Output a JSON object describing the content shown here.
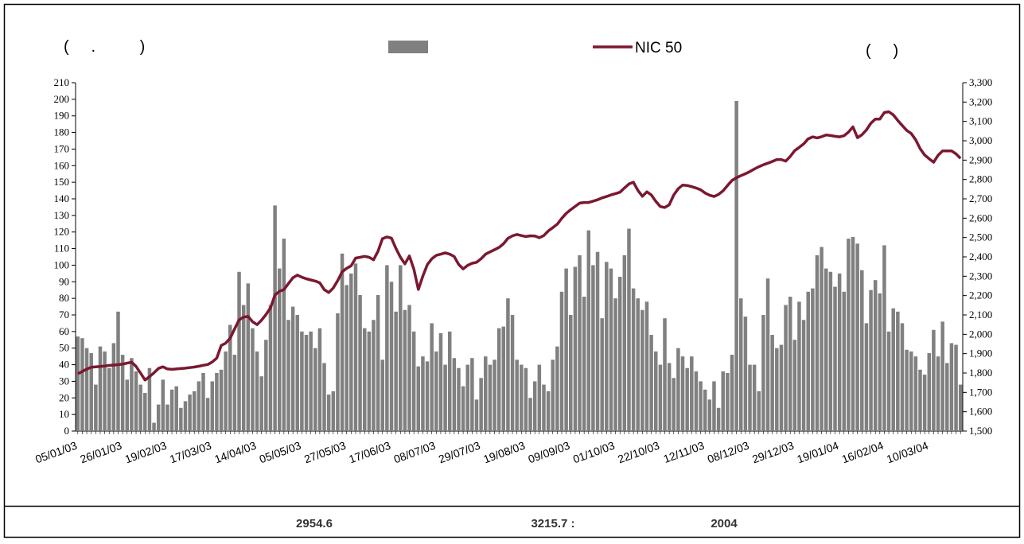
{
  "chart_data": {
    "type": "bar_line",
    "left_axis_label": "(     .          )",
    "right_axis_label": "(     )",
    "footer": [
      "2954.6",
      "3215.7 :",
      "2004"
    ],
    "categories": [
      "05/01/03",
      null,
      null,
      null,
      null,
      null,
      null,
      null,
      null,
      null,
      "26/01/03",
      null,
      null,
      null,
      null,
      null,
      null,
      null,
      null,
      null,
      "19/02/03",
      null,
      null,
      null,
      null,
      null,
      null,
      null,
      null,
      null,
      "17/03/03",
      null,
      null,
      null,
      null,
      null,
      null,
      null,
      null,
      null,
      "14/04/03",
      null,
      null,
      null,
      null,
      null,
      null,
      null,
      null,
      null,
      "05/05/03",
      null,
      null,
      null,
      null,
      null,
      null,
      null,
      null,
      null,
      "27/05/03",
      null,
      null,
      null,
      null,
      null,
      null,
      null,
      null,
      null,
      "17/06/03",
      null,
      null,
      null,
      null,
      null,
      null,
      null,
      null,
      null,
      "08/07/03",
      null,
      null,
      null,
      null,
      null,
      null,
      null,
      null,
      null,
      "29/07/03",
      null,
      null,
      null,
      null,
      null,
      null,
      null,
      null,
      null,
      "19/08/03",
      null,
      null,
      null,
      null,
      null,
      null,
      null,
      null,
      null,
      "09/09/03",
      null,
      null,
      null,
      null,
      null,
      null,
      null,
      null,
      null,
      "01/10/03",
      null,
      null,
      null,
      null,
      null,
      null,
      null,
      null,
      null,
      "22/10/03",
      null,
      null,
      null,
      null,
      null,
      null,
      null,
      null,
      null,
      "12/11/03",
      null,
      null,
      null,
      null,
      null,
      null,
      null,
      null,
      null,
      "08/12/03",
      null,
      null,
      null,
      null,
      null,
      null,
      null,
      null,
      null,
      "29/12/03",
      null,
      null,
      null,
      null,
      null,
      null,
      null,
      null,
      null,
      "19/01/04",
      null,
      null,
      null,
      null,
      null,
      null,
      null,
      null,
      null,
      "16/02/04",
      null,
      null,
      null,
      null,
      null,
      null,
      null,
      null,
      null,
      "10/03/04",
      null,
      null,
      null,
      null,
      null,
      null,
      null
    ],
    "series": [
      {
        "kind": "bar",
        "color": "#808080",
        "values": [
          57,
          56,
          50,
          47,
          28,
          51,
          48,
          38,
          53,
          72,
          46,
          31,
          44,
          36,
          28,
          23,
          38,
          5,
          16,
          31,
          16,
          25,
          27,
          14,
          18,
          22,
          24,
          30,
          35,
          20,
          30,
          35,
          37,
          48,
          64,
          46,
          96,
          76,
          89,
          62,
          48,
          33,
          55,
          76,
          136,
          98,
          116,
          67,
          75,
          70,
          60,
          58,
          60,
          50,
          62,
          41,
          22,
          24,
          71,
          107,
          88,
          95,
          101,
          82,
          62,
          60,
          67,
          82,
          43,
          100,
          90,
          72,
          100,
          73,
          76,
          60,
          39,
          45,
          42,
          65,
          48,
          59,
          40,
          60,
          44,
          38,
          27,
          40,
          44,
          19,
          32,
          45,
          40,
          43,
          62,
          63,
          80,
          70,
          43,
          40,
          38,
          20,
          30,
          40,
          28,
          24,
          43,
          51,
          84,
          98,
          70,
          99,
          106,
          81,
          121,
          100,
          108,
          68,
          102,
          98,
          80,
          93,
          106,
          122,
          86,
          80,
          73,
          78,
          58,
          48,
          40,
          68,
          41,
          32,
          50,
          45,
          38,
          45,
          36,
          30,
          25,
          19,
          30,
          14,
          36,
          35,
          46,
          199,
          80,
          69,
          40,
          40,
          24,
          70,
          92,
          58,
          50,
          52,
          76,
          81,
          55,
          78,
          67,
          84,
          86,
          106,
          111,
          98,
          96,
          87,
          95,
          84,
          116,
          117,
          113,
          97,
          65,
          85,
          91,
          83,
          112,
          60,
          74,
          72,
          65,
          49,
          48,
          45,
          37,
          34,
          47,
          61,
          45,
          66,
          41,
          53,
          52,
          28
        ]
      },
      {
        "kind": "line",
        "name": "NIC 50",
        "color": "#7b1830",
        "axis": "y2",
        "values": [
          1796,
          1808,
          1820,
          1830,
          1832,
          1834,
          1836,
          1839,
          1841,
          1843,
          1846,
          1851,
          1856,
          1834,
          1799,
          1764,
          1781,
          1801,
          1824,
          1832,
          1821,
          1819,
          1821,
          1823,
          1825,
          1828,
          1831,
          1835,
          1840,
          1844,
          1857,
          1877,
          1942,
          1954,
          1980,
          2028,
          2075,
          2089,
          2092,
          2065,
          2050,
          2073,
          2102,
          2137,
          2203,
          2222,
          2231,
          2262,
          2292,
          2306,
          2295,
          2287,
          2281,
          2275,
          2266,
          2231,
          2216,
          2239,
          2277,
          2323,
          2341,
          2354,
          2394,
          2398,
          2403,
          2398,
          2385,
          2429,
          2494,
          2503,
          2497,
          2444,
          2398,
          2364,
          2405,
          2336,
          2232,
          2300,
          2360,
          2390,
          2408,
          2414,
          2421,
          2414,
          2402,
          2361,
          2338,
          2356,
          2367,
          2372,
          2390,
          2414,
          2426,
          2437,
          2449,
          2468,
          2496,
          2509,
          2516,
          2510,
          2505,
          2509,
          2508,
          2499,
          2510,
          2534,
          2551,
          2569,
          2599,
          2625,
          2644,
          2661,
          2678,
          2681,
          2681,
          2688,
          2695,
          2705,
          2712,
          2720,
          2727,
          2734,
          2756,
          2777,
          2786,
          2744,
          2713,
          2736,
          2720,
          2687,
          2660,
          2655,
          2669,
          2720,
          2752,
          2771,
          2769,
          2763,
          2756,
          2747,
          2730,
          2719,
          2712,
          2723,
          2741,
          2769,
          2795,
          2809,
          2820,
          2830,
          2841,
          2854,
          2866,
          2876,
          2884,
          2893,
          2903,
          2903,
          2895,
          2919,
          2949,
          2966,
          2984,
          3010,
          3020,
          3015,
          3021,
          3030,
          3027,
          3023,
          3020,
          3026,
          3045,
          3072,
          3016,
          3031,
          3056,
          3091,
          3112,
          3112,
          3146,
          3150,
          3134,
          3105,
          3079,
          3054,
          3038,
          3005,
          2959,
          2927,
          2907,
          2889,
          2925,
          2948,
          2948,
          2948,
          2932,
          2909
        ]
      }
    ],
    "ylim": [
      0,
      210
    ],
    "yticks": [
      0,
      10,
      20,
      30,
      40,
      50,
      60,
      70,
      80,
      90,
      100,
      110,
      120,
      130,
      140,
      150,
      160,
      170,
      180,
      190,
      200,
      210
    ],
    "y2lim": [
      1500,
      3300
    ],
    "y2ticks": [
      {
        "value": 1500,
        "label": "1,500"
      },
      {
        "value": 1600,
        "label": "1,600"
      },
      {
        "value": 1700,
        "label": "1,700"
      },
      {
        "value": 1800,
        "label": "1,800"
      },
      {
        "value": 1900,
        "label": "1,900"
      },
      {
        "value": 2000,
        "label": "2,000"
      },
      {
        "value": 2100,
        "label": "2,100"
      },
      {
        "value": 2200,
        "label": "2,200"
      },
      {
        "value": 2300,
        "label": "2,300"
      },
      {
        "value": 2400,
        "label": "2,400"
      },
      {
        "value": 2500,
        "label": "2,500"
      },
      {
        "value": 2600,
        "label": "2,600"
      },
      {
        "value": 2700,
        "label": "2,700"
      },
      {
        "value": 2800,
        "label": "2,800"
      },
      {
        "value": 2900,
        "label": "2,900"
      },
      {
        "value": 3000,
        "label": "3,000"
      },
      {
        "value": 3100,
        "label": "3,100"
      },
      {
        "value": 3200,
        "label": "3,200"
      },
      {
        "value": 3300,
        "label": "3,300"
      }
    ]
  }
}
